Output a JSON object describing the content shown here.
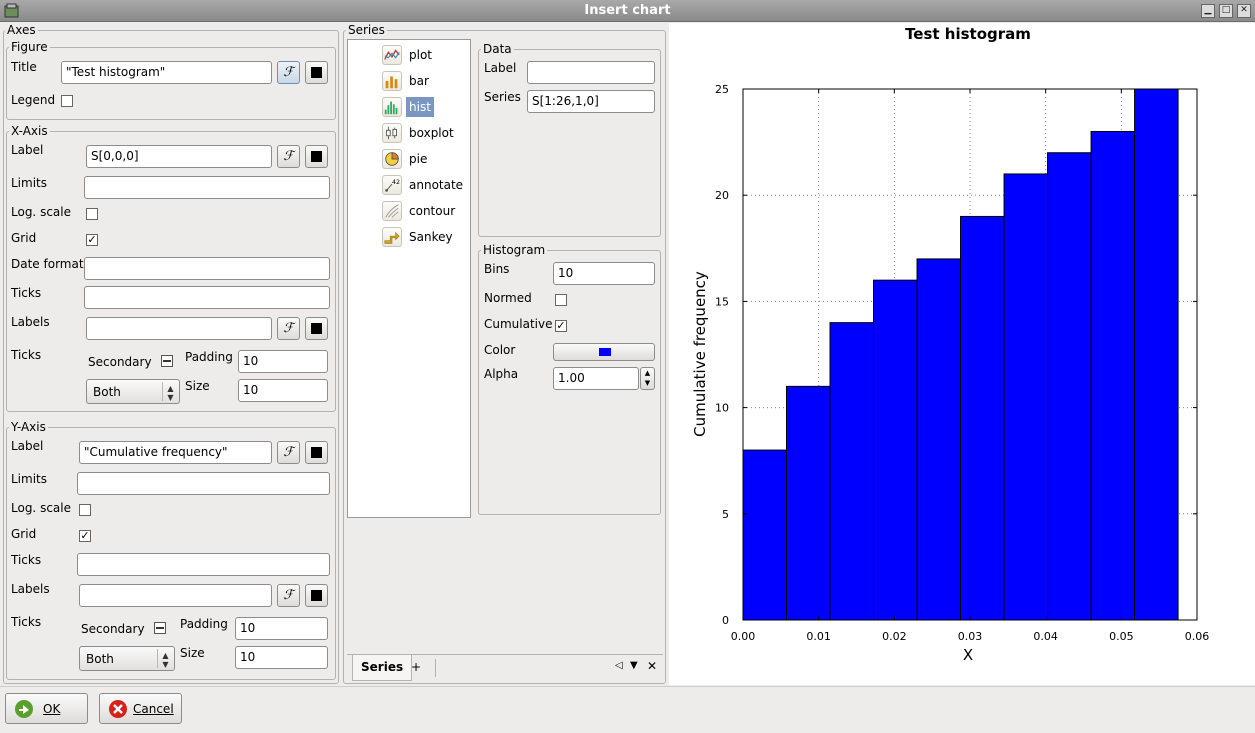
{
  "window": {
    "title": "Insert chart"
  },
  "axes": {
    "title": "Axes",
    "figure": {
      "title": "Figure",
      "title_label": "Title",
      "title_value": "\"Test histogram\"",
      "legend_label": "Legend",
      "legend_checked": false
    },
    "x_axis": {
      "title": "X-Axis",
      "label_label": "Label",
      "label_value": "S[0,0,0]",
      "limits_label": "Limits",
      "limits_value": "",
      "log_label": "Log. scale",
      "log_checked": false,
      "grid_label": "Grid",
      "grid_checked": true,
      "date_label": "Date format",
      "date_value": "",
      "ticks_label": "Ticks",
      "ticks_value": "",
      "labels_label": "Labels",
      "labels_value": "",
      "ticks2_label": "Ticks",
      "secondary_label": "Secondary",
      "padding_label": "Padding",
      "padding_value": "10",
      "size_label": "Size",
      "size_value": "10",
      "which_value": "Both"
    },
    "y_axis": {
      "title": "Y-Axis",
      "label_label": "Label",
      "label_value": "\"Cumulative frequency\"",
      "limits_label": "Limits",
      "limits_value": "",
      "log_label": "Log. scale",
      "log_checked": false,
      "grid_label": "Grid",
      "grid_checked": true,
      "ticks_label": "Ticks",
      "ticks_value": "",
      "labels_label": "Labels",
      "labels_value": "",
      "ticks2_label": "Ticks",
      "secondary_label": "Secondary",
      "padding_label": "Padding",
      "padding_value": "10",
      "size_label": "Size",
      "size_value": "10",
      "which_value": "Both"
    }
  },
  "series": {
    "title": "Series",
    "types": [
      {
        "label": "plot",
        "icon": "plot-icon"
      },
      {
        "label": "bar",
        "icon": "bar-icon"
      },
      {
        "label": "hist",
        "icon": "hist-icon",
        "selected": true
      },
      {
        "label": "boxplot",
        "icon": "boxplot-icon"
      },
      {
        "label": "pie",
        "icon": "pie-icon"
      },
      {
        "label": "annotate",
        "icon": "annotate-icon"
      },
      {
        "label": "contour",
        "icon": "contour-icon"
      },
      {
        "label": "Sankey",
        "icon": "sankey-icon"
      }
    ],
    "data": {
      "title": "Data",
      "label_label": "Label",
      "label_value": "",
      "series_label": "Series",
      "series_value": "S[1:26,1,0]"
    },
    "histogram": {
      "title": "Histogram",
      "bins_label": "Bins",
      "bins_value": "10",
      "normed_label": "Normed",
      "normed_checked": false,
      "cumulative_label": "Cumulative",
      "cumulative_checked": true,
      "color_label": "Color",
      "color_value": "#0000ff",
      "alpha_label": "Alpha",
      "alpha_value": "1.00"
    },
    "tabs": [
      {
        "label": "Series",
        "active": true
      },
      {
        "label": "+"
      }
    ]
  },
  "buttons": {
    "ok": "OK",
    "cancel": "Cancel"
  },
  "colors": {
    "bar": "#0000ff"
  },
  "chart_data": {
    "type": "bar",
    "title": "Test histogram",
    "xlabel": "X",
    "ylabel": "Cumulative frequency",
    "xlim": [
      0.0,
      0.06
    ],
    "ylim": [
      0,
      25
    ],
    "x_ticks": [
      0.0,
      0.01,
      0.02,
      0.03,
      0.04,
      0.05,
      0.06
    ],
    "x_tick_labels": [
      "0.00",
      "0.01",
      "0.02",
      "0.03",
      "0.04",
      "0.05",
      "0.06"
    ],
    "y_ticks": [
      0,
      5,
      10,
      15,
      20,
      25
    ],
    "y_tick_labels": [
      "0",
      "5",
      "10",
      "15",
      "20",
      "25"
    ],
    "bin_edges": [
      0.0,
      0.00575,
      0.0115,
      0.01725,
      0.023,
      0.02875,
      0.0345,
      0.04025,
      0.046,
      0.05175,
      0.0575
    ],
    "values": [
      8,
      11,
      14,
      16,
      17,
      19,
      21,
      22,
      23,
      25
    ],
    "grid": true
  }
}
